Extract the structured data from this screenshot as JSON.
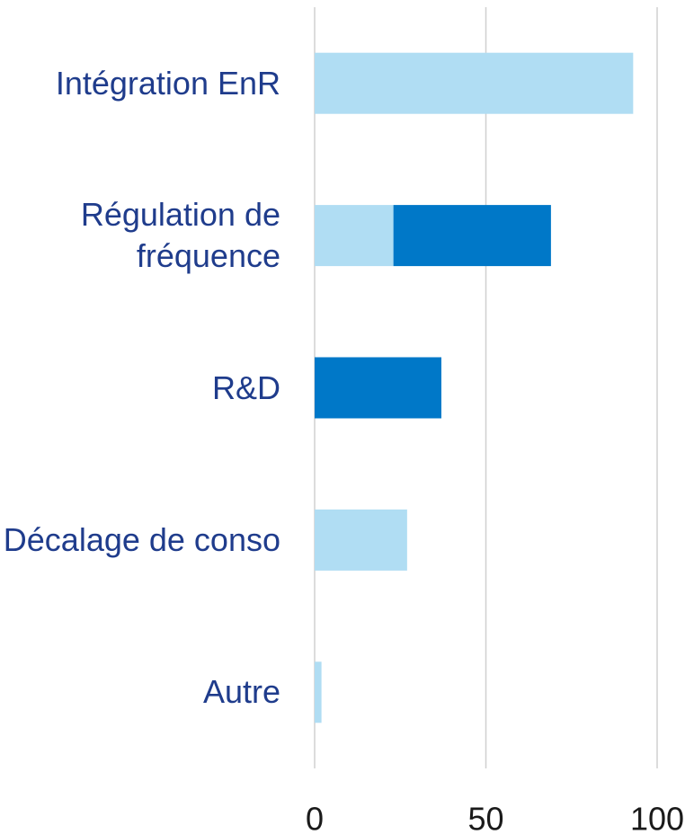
{
  "chart_data": {
    "type": "bar",
    "orientation": "horizontal",
    "stacked": true,
    "categories": [
      "Intégration EnR",
      "Régulation de fréquence",
      "R&D",
      "Décalage de conso",
      "Autre"
    ],
    "series": [
      {
        "color": "#b0ddf3",
        "values": [
          93,
          23,
          0,
          27,
          2
        ]
      },
      {
        "color": "#0078c8",
        "values": [
          0,
          46,
          37,
          0,
          0
        ]
      }
    ],
    "xlim": [
      0,
      100
    ],
    "xticks": [
      0,
      50,
      100
    ],
    "grid": true
  }
}
